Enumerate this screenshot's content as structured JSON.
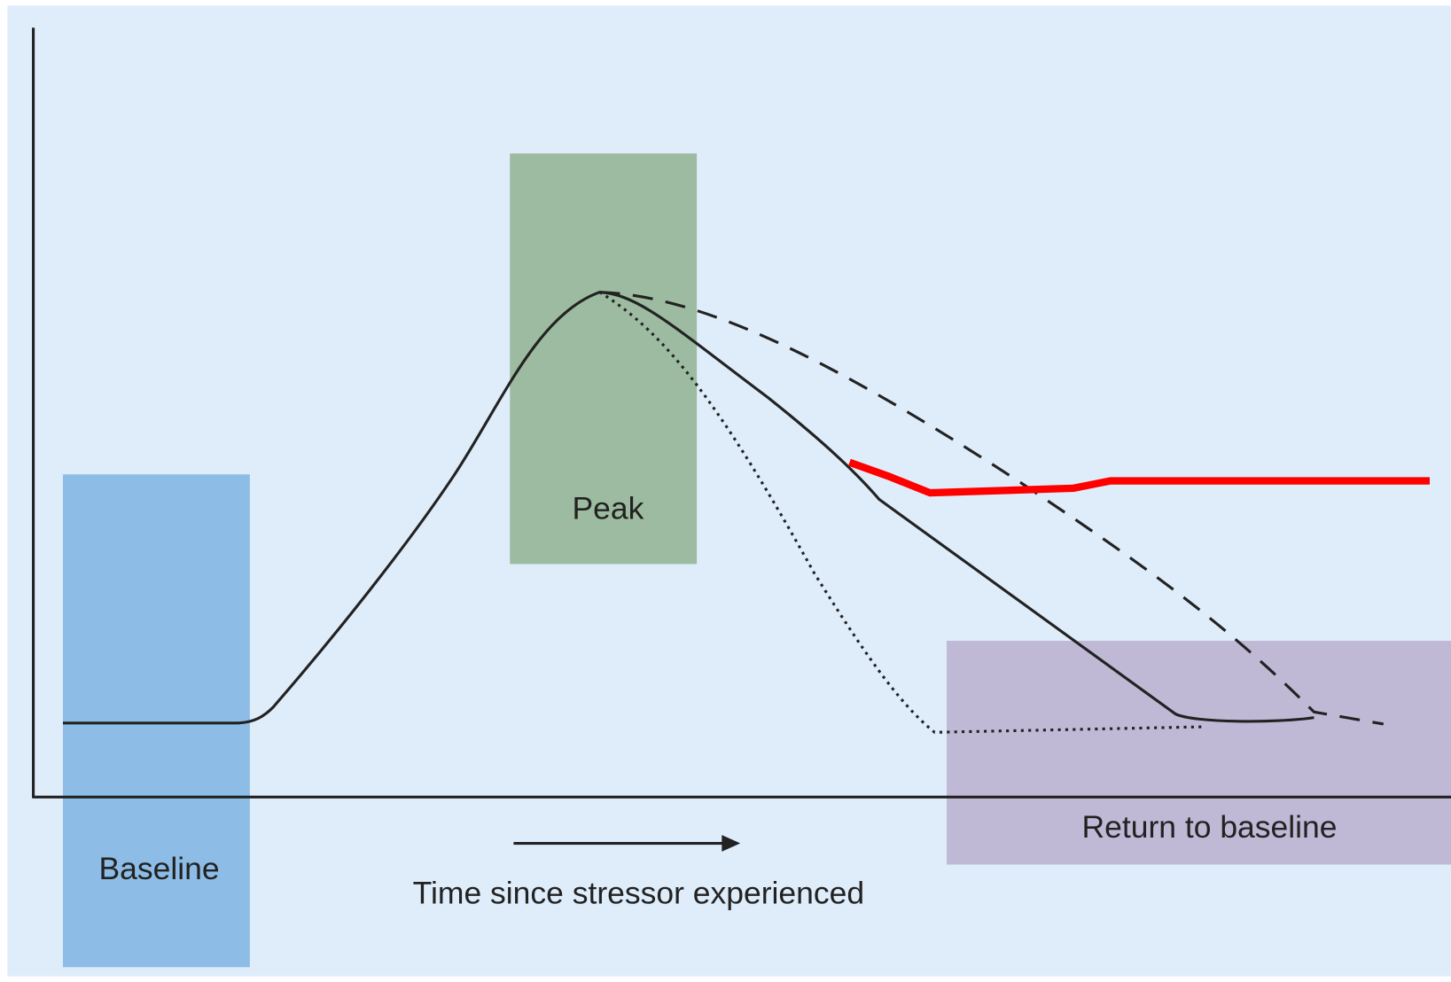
{
  "diagram": {
    "regions": [
      {
        "label": "Baseline"
      },
      {
        "label": "Peak"
      },
      {
        "label": "Return to baseline"
      }
    ],
    "x_axis_label": "Time since stressor experienced"
  }
}
